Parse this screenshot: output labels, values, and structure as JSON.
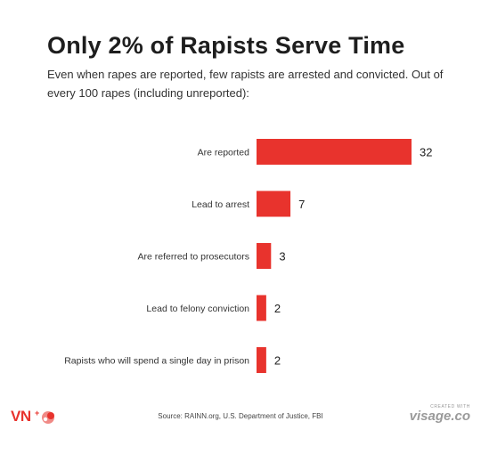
{
  "header": {
    "title": "Only 2% of Rapists Serve Time",
    "subtitle": "Even when rapes are reported, few rapists are arrested and convicted. Out of every 100 rapes (including unreported):"
  },
  "chart_data": {
    "type": "bar",
    "orientation": "horizontal",
    "categories": [
      "Are reported",
      "Lead to arrest",
      "Are referred to prosecutors",
      "Lead to felony conviction",
      "Rapists who will spend a single day in prison"
    ],
    "values": [
      32,
      7,
      3,
      2,
      2
    ],
    "xlim": [
      0,
      32
    ],
    "grid": false,
    "legend": "none",
    "bar_color": "#e8332d",
    "title": "Only 2% of Rapists Serve Time"
  },
  "footer": {
    "brand_left": "VN",
    "brand_plus": "+",
    "source": "Source: RAINN.org, U.S. Department of Justice, FBI",
    "credit_small": "CREATED WITH",
    "credit_brand": "visage.co"
  },
  "colors": {
    "accent": "#e8332d",
    "text": "#1e1e1e",
    "muted": "#9a9a9a"
  }
}
